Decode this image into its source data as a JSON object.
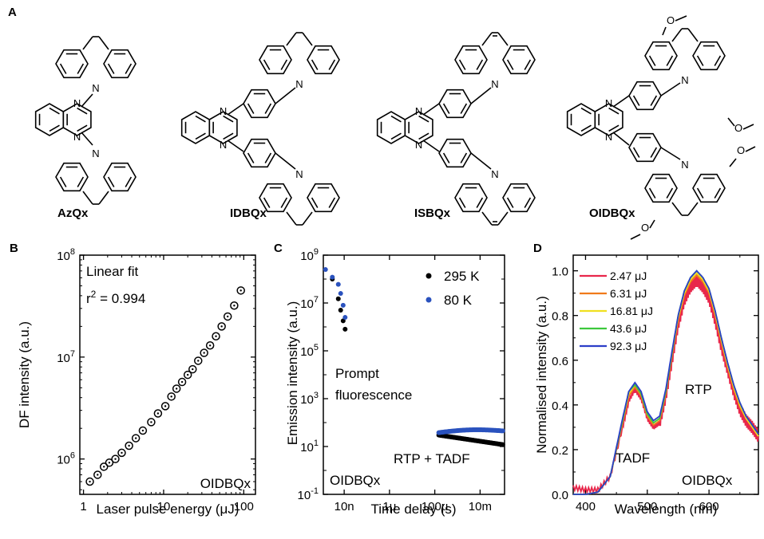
{
  "panel_a": {
    "letter": "A",
    "molecules": [
      "AzQx",
      "IDBQx",
      "ISBQx",
      "OIDBQx"
    ],
    "atom_N": "N",
    "atom_O": "O"
  },
  "chart_data": [
    {
      "panel": "B",
      "type": "scatter",
      "xlabel": "Laser pulse energy (μJ)",
      "ylabel": "DF intensity (a.u.)",
      "xscale": "log",
      "yscale": "log",
      "xlim": [
        0.9,
        140
      ],
      "ylim": [
        450000,
        100000000
      ],
      "xticks": [
        {
          "v": 1,
          "t": "1"
        },
        {
          "v": 10,
          "t": "10"
        },
        {
          "v": 100,
          "t": "100"
        }
      ],
      "yticks": [
        {
          "v": 1000000,
          "b": "10",
          "e": "6"
        },
        {
          "v": 10000000,
          "b": "10",
          "e": "7"
        },
        {
          "v": 100000000,
          "b": "10",
          "e": "8"
        }
      ],
      "annotations": [
        "Linear fit",
        "r",
        "2",
        " = 0.994",
        "OIDBQx"
      ],
      "series": [
        {
          "marker": "open-circle",
          "color": "#000000",
          "x": [
            1.2,
            1.5,
            1.8,
            2.1,
            2.5,
            3.0,
            3.7,
            4.5,
            5.5,
            7.0,
            8.5,
            10.5,
            12.5,
            14.5,
            17.0,
            20.0,
            23.0,
            27.0,
            32.0,
            38.0,
            45.0,
            53.0,
            63.0,
            76.0,
            92.0
          ],
          "y": [
            600000,
            700000,
            840000,
            920000,
            1000000,
            1150000,
            1350000,
            1600000,
            1900000,
            2300000,
            2800000,
            3300000,
            4100000,
            4900000,
            5700000,
            6700000,
            7600000,
            9200000,
            11000000,
            13000000,
            16000000,
            20000000,
            25000000,
            32000000,
            45000000
          ]
        }
      ]
    },
    {
      "panel": "C",
      "type": "scatter",
      "xlabel": "Time delay (s)",
      "ylabel": "Emission intensity (a.u.)",
      "xscale": "log",
      "yscale": "log",
      "xlim": [
        1.2e-09,
        0.12
      ],
      "ylim": [
        0.1,
        1000000000
      ],
      "xticks": [
        {
          "v": 1e-08,
          "t": "10n"
        },
        {
          "v": 1e-06,
          "t": "1μ"
        },
        {
          "v": 0.0001,
          "t": "100μ"
        },
        {
          "v": 0.01,
          "t": "10m"
        }
      ],
      "yticks": [
        {
          "v": 0.1,
          "b": "10",
          "e": "-1"
        },
        {
          "v": 10,
          "b": "10",
          "e": "1"
        },
        {
          "v": 1000,
          "b": "10",
          "e": "3"
        },
        {
          "v": 100000,
          "b": "10",
          "e": "5"
        },
        {
          "v": 10000000,
          "b": "10",
          "e": "7"
        },
        {
          "v": 1000000000,
          "b": "10",
          "e": "9"
        }
      ],
      "annotations": [
        "Prompt",
        "fluorescence",
        "RTP + TADF",
        "OIDBQx"
      ],
      "series": [
        {
          "name": "295 K",
          "color": "#000000",
          "prompt_x": [
            3e-09,
            5.5e-09,
            7e-09,
            9e-09,
            1.1e-08
          ],
          "prompt_y": [
            100000000.0,
            15000000.0,
            5000000.0,
            1800000.0,
            800000.0
          ],
          "delayed_x": [
            0.00015,
            0.1
          ],
          "delayed_y": [
            30,
            12
          ]
        },
        {
          "name": "80 K",
          "color": "#2a52be",
          "prompt_x": [
            1.5e-09,
            3e-09,
            5.5e-09,
            7e-09,
            9e-09,
            1.1e-08
          ],
          "prompt_y": [
            250000000.0,
            120000000.0,
            60000000.0,
            25000000.0,
            8000000.0,
            2500000.0
          ],
          "delayed_x": [
            0.00015,
            0.1
          ],
          "delayed_y": [
            38,
            45
          ]
        }
      ]
    },
    {
      "panel": "D",
      "type": "line",
      "xlabel": "Wavelength (nm)",
      "ylabel": "Normalised intensity (a.u.)",
      "xlim": [
        380,
        680
      ],
      "ylim": [
        0,
        1.07
      ],
      "xticks": [
        {
          "v": 400,
          "t": "400"
        },
        {
          "v": 500,
          "t": "500"
        },
        {
          "v": 600,
          "t": "600"
        }
      ],
      "yticks": [
        {
          "v": 0,
          "t": "0.0"
        },
        {
          "v": 0.2,
          "t": "0.2"
        },
        {
          "v": 0.4,
          "t": "0.4"
        },
        {
          "v": 0.6,
          "t": "0.6"
        },
        {
          "v": 0.8,
          "t": "0.8"
        },
        {
          "v": 1.0,
          "t": "1.0"
        }
      ],
      "annotations": [
        "TADF",
        "RTP",
        "OIDBQx"
      ],
      "x": [
        380,
        400,
        420,
        440,
        460,
        470,
        480,
        490,
        500,
        510,
        520,
        530,
        540,
        550,
        560,
        570,
        580,
        590,
        600,
        610,
        620,
        630,
        640,
        650,
        660,
        670,
        680
      ],
      "series": [
        {
          "name": "2.47 μJ",
          "color": "#e8274b",
          "values": [
            0.03,
            0.02,
            0.02,
            0.08,
            0.3,
            0.42,
            0.47,
            0.43,
            0.34,
            0.3,
            0.32,
            0.44,
            0.6,
            0.76,
            0.87,
            0.93,
            0.96,
            0.93,
            0.88,
            0.78,
            0.66,
            0.56,
            0.46,
            0.38,
            0.33,
            0.3,
            0.26
          ]
        },
        {
          "name": "6.31 μJ",
          "color": "#f07a1a",
          "values": [
            0.0,
            0.0,
            0.01,
            0.08,
            0.32,
            0.44,
            0.48,
            0.44,
            0.35,
            0.31,
            0.33,
            0.45,
            0.62,
            0.78,
            0.89,
            0.95,
            0.98,
            0.95,
            0.9,
            0.8,
            0.68,
            0.57,
            0.47,
            0.39,
            0.34,
            0.3,
            0.26
          ]
        },
        {
          "name": "16.81 μJ",
          "color": "#f0e020",
          "values": [
            0.0,
            0.0,
            0.01,
            0.08,
            0.33,
            0.45,
            0.49,
            0.45,
            0.36,
            0.32,
            0.34,
            0.46,
            0.63,
            0.79,
            0.9,
            0.96,
            0.99,
            0.96,
            0.91,
            0.81,
            0.69,
            0.58,
            0.48,
            0.4,
            0.34,
            0.3,
            0.26
          ]
        },
        {
          "name": "43.6 μJ",
          "color": "#3cc83c",
          "values": [
            0.0,
            0.0,
            0.01,
            0.08,
            0.33,
            0.46,
            0.49,
            0.45,
            0.36,
            0.32,
            0.34,
            0.46,
            0.63,
            0.8,
            0.91,
            0.97,
            1.0,
            0.97,
            0.92,
            0.82,
            0.7,
            0.59,
            0.49,
            0.41,
            0.35,
            0.31,
            0.27
          ]
        },
        {
          "name": "92.3 μJ",
          "color": "#2c3ec8",
          "values": [
            0.0,
            0.0,
            0.01,
            0.08,
            0.34,
            0.46,
            0.5,
            0.46,
            0.37,
            0.33,
            0.35,
            0.47,
            0.64,
            0.8,
            0.91,
            0.97,
            1.0,
            0.97,
            0.92,
            0.82,
            0.7,
            0.59,
            0.49,
            0.41,
            0.35,
            0.31,
            0.27
          ]
        }
      ]
    }
  ]
}
